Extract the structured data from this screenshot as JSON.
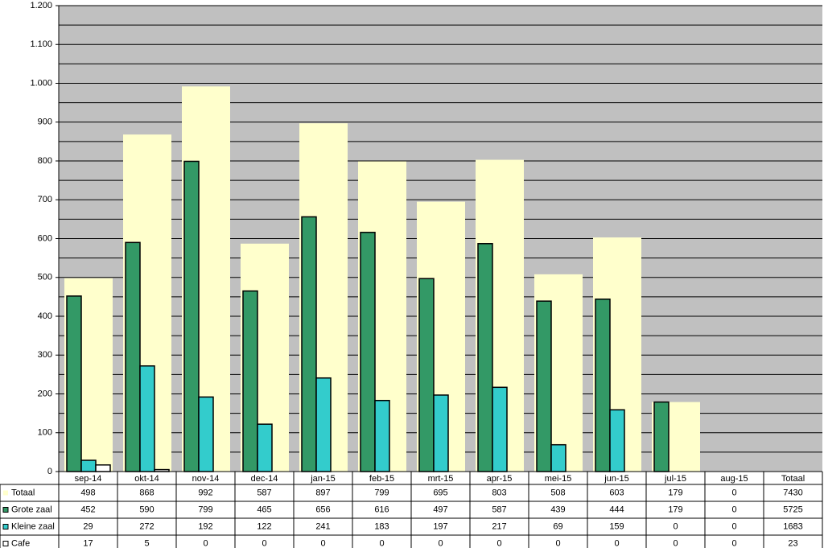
{
  "chart_data": {
    "type": "bar",
    "categories": [
      "sep-14",
      "okt-14",
      "nov-14",
      "dec-14",
      "jan-15",
      "feb-15",
      "mrt-15",
      "apr-15",
      "mei-15",
      "jun-15",
      "jul-15",
      "aug-15"
    ],
    "total_label": "Totaal",
    "series": [
      {
        "name": "Totaal",
        "color": "#ffffcc",
        "values": [
          498,
          868,
          992,
          587,
          897,
          799,
          695,
          803,
          508,
          603,
          179,
          0
        ],
        "total": 7430
      },
      {
        "name": "Grote zaal",
        "color": "#339966",
        "values": [
          452,
          590,
          799,
          465,
          656,
          616,
          497,
          587,
          439,
          444,
          179,
          0
        ],
        "total": 5725
      },
      {
        "name": "Kleine zaal",
        "color": "#33cccc",
        "values": [
          29,
          272,
          192,
          122,
          241,
          183,
          197,
          217,
          69,
          159,
          0,
          0
        ],
        "total": 1683
      },
      {
        "name": "Cafe",
        "color": "#ffffff",
        "values": [
          17,
          5,
          0,
          0,
          0,
          0,
          0,
          0,
          0,
          0,
          0,
          0
        ],
        "total": 23
      }
    ],
    "ylim": [
      0,
      1200
    ],
    "yticks": [
      0,
      100,
      200,
      300,
      400,
      500,
      600,
      700,
      800,
      900,
      {
        "value": 1000,
        "label": "1.000"
      },
      {
        "value": 1100,
        "label": "1.100"
      },
      {
        "value": 1200,
        "label": "1.200"
      }
    ],
    "grid": true,
    "minor_grid": true
  }
}
